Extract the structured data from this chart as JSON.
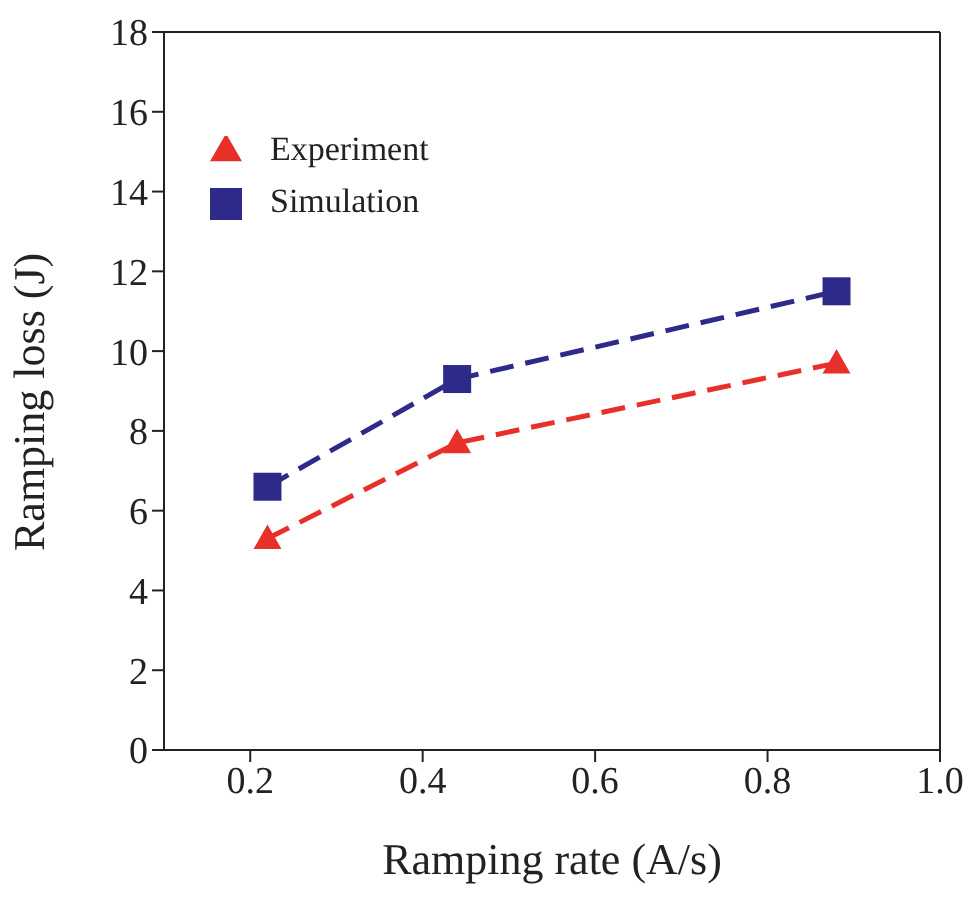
{
  "chart_data": {
    "type": "line",
    "xlabel": "Ramping rate (A/s)",
    "ylabel": "Ramping loss (J)",
    "xlim": [
      0.1,
      1.0
    ],
    "xticks": [
      0.2,
      0.4,
      0.6,
      0.8,
      {
        "value": 1.0,
        "label": "1.0"
      }
    ],
    "ylim": [
      0,
      18
    ],
    "yticks": [
      0,
      2,
      4,
      6,
      8,
      10,
      12,
      14,
      16,
      18
    ],
    "x": [
      0.22,
      0.44,
      0.88
    ],
    "grid": false,
    "legend": "top left",
    "line_style": "dashed",
    "series": [
      {
        "name": "Experiment",
        "color": "#e8302a",
        "marker": "triangle",
        "values": [
          5.3,
          7.7,
          9.7
        ]
      },
      {
        "name": "Simulation",
        "color": "#2e2a8a",
        "marker": "square",
        "values": [
          6.6,
          9.3,
          11.5
        ]
      }
    ]
  }
}
